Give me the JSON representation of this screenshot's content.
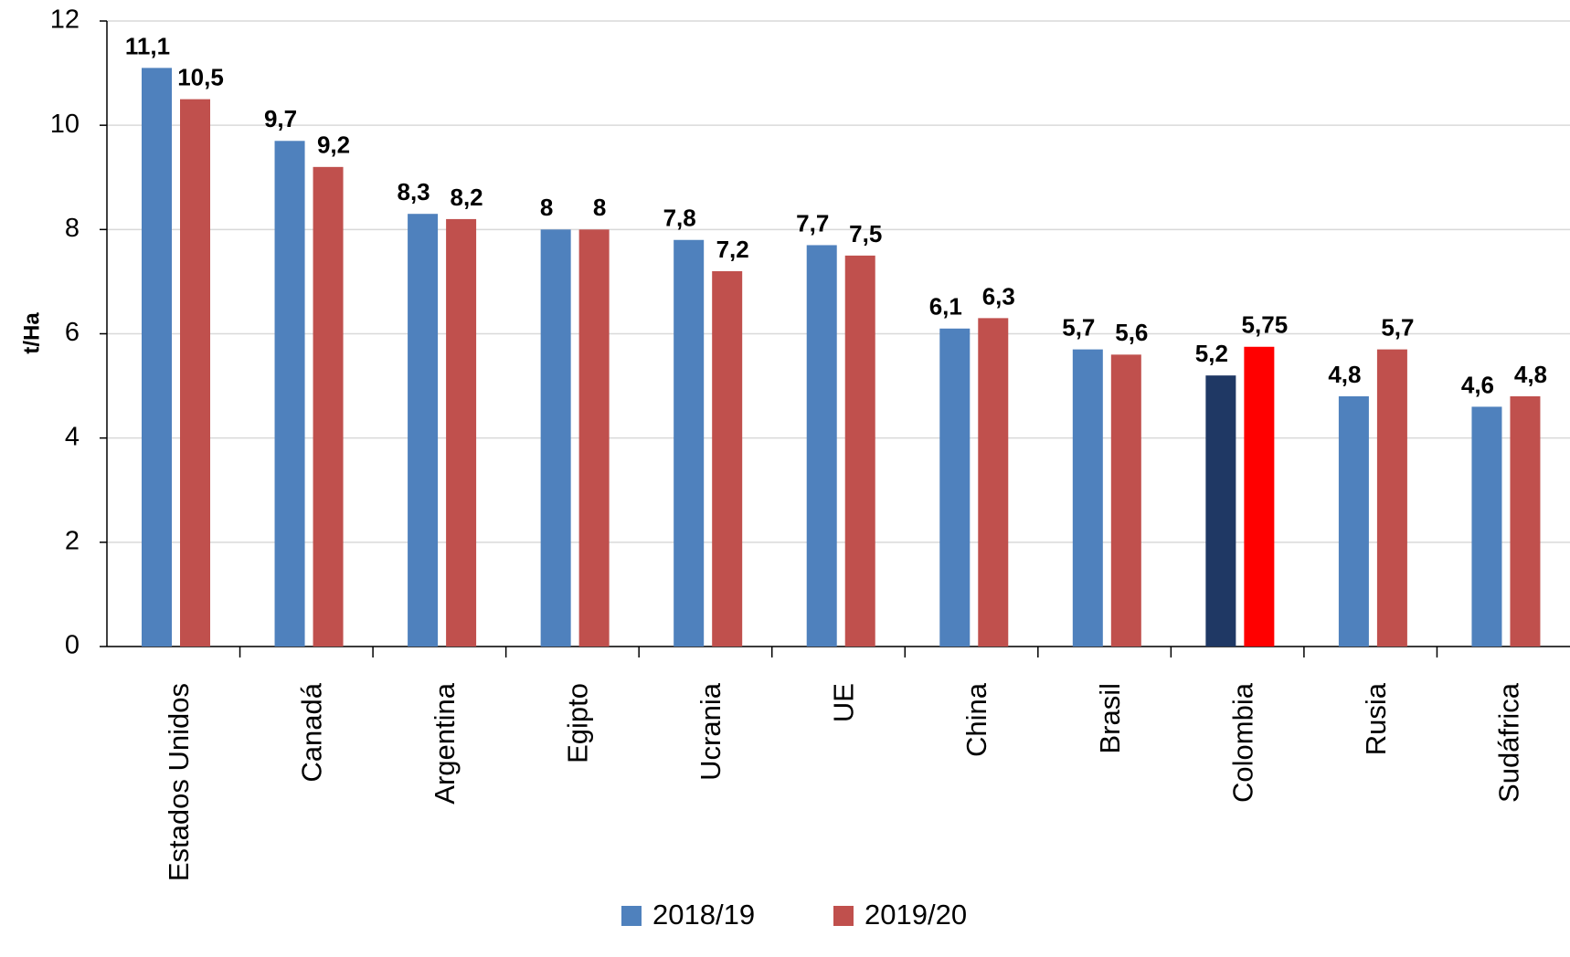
{
  "chart_data": {
    "type": "bar",
    "y_label": "t/Ha",
    "categories": [
      "Estados Unidos",
      "Canadá",
      "Argentina",
      "Egipto",
      "Ucrania",
      "UE",
      "China",
      "Brasil",
      "Colombia",
      "Rusia",
      "Sudáfrica"
    ],
    "series": [
      {
        "name": "2018/19",
        "color": "#4f81bd",
        "label_color": "#2e75b6",
        "colors": [
          "#4f81bd",
          "#4f81bd",
          "#4f81bd",
          "#4f81bd",
          "#4f81bd",
          "#4f81bd",
          "#4f81bd",
          "#4f81bd",
          "#1f3864",
          "#4f81bd",
          "#4f81bd"
        ],
        "values": [
          11.1,
          9.7,
          8.3,
          8,
          7.8,
          7.7,
          6.1,
          5.7,
          5.2,
          4.8,
          4.6
        ],
        "value_labels": [
          "11,1",
          "9,7",
          "8,3",
          "8",
          "7,8",
          "7,7",
          "6,1",
          "5,7",
          "5,2",
          "4,8",
          "4,6"
        ]
      },
      {
        "name": "2019/20",
        "color": "#c0504d",
        "label_color": "#ff0000",
        "colors": [
          "#c0504d",
          "#c0504d",
          "#c0504d",
          "#c0504d",
          "#c0504d",
          "#c0504d",
          "#c0504d",
          "#c0504d",
          "#ff0000",
          "#c0504d",
          "#c0504d"
        ],
        "values": [
          10.5,
          9.2,
          8.2,
          8,
          7.2,
          7.5,
          6.3,
          5.6,
          5.75,
          5.7,
          4.8
        ],
        "value_labels": [
          "10,5",
          "9,2",
          "8,2",
          "8",
          "7,2",
          "7,5",
          "6,3",
          "5,6",
          "5,75",
          "5,7",
          "4,8"
        ]
      }
    ],
    "ylim": [
      0,
      12
    ],
    "yticks": [
      0,
      2,
      4,
      6,
      8,
      10,
      12
    ],
    "grid": true,
    "legend": "bottom"
  }
}
